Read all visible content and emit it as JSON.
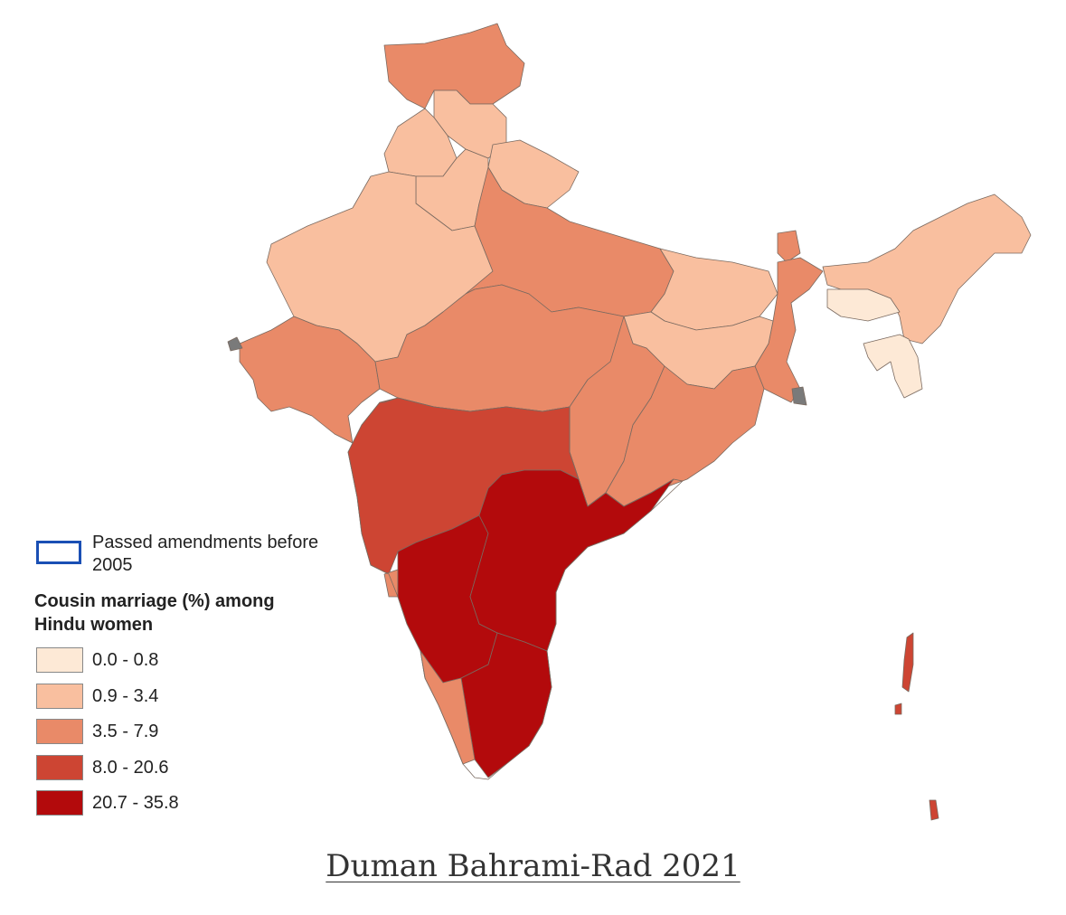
{
  "colors": {
    "c0": "#fde9d6",
    "c1": "#f9bf9f",
    "c2": "#e98a68",
    "c3": "#cd4533",
    "c4": "#b30a0c",
    "amendment_outline": "#1a4fb4",
    "no_data": "#7a7a7a"
  },
  "legend": {
    "amendment_label": "Passed amendments before 2005",
    "title": "Cousin marriage (%) among Hindu women",
    "classes": [
      {
        "label": "0.0 - 0.8",
        "color": "#fde9d6"
      },
      {
        "label": "0.9 - 3.4",
        "color": "#f9bf9f"
      },
      {
        "label": "3.5 - 7.9",
        "color": "#e98a68"
      },
      {
        "label": "8.0 - 20.6",
        "color": "#cd4533"
      },
      {
        "label": "20.7 - 35.8",
        "color": "#b30a0c"
      }
    ]
  },
  "map": {
    "regions": [
      {
        "name": "jammu-kashmir",
        "class": 2
      },
      {
        "name": "himachal-pradesh",
        "class": 1
      },
      {
        "name": "punjab",
        "class": 1
      },
      {
        "name": "uttarakhand",
        "class": 1
      },
      {
        "name": "haryana",
        "class": 1
      },
      {
        "name": "rajasthan",
        "class": 1
      },
      {
        "name": "uttar-pradesh",
        "class": 2
      },
      {
        "name": "bihar",
        "class": 1
      },
      {
        "name": "sikkim",
        "class": 2
      },
      {
        "name": "west-bengal",
        "class": 2
      },
      {
        "name": "gujarat",
        "class": 2
      },
      {
        "name": "madhya-pradesh",
        "class": 2
      },
      {
        "name": "jharkhand",
        "class": 1
      },
      {
        "name": "chhattisgarh",
        "class": 2
      },
      {
        "name": "odisha",
        "class": 2
      },
      {
        "name": "maharashtra",
        "class": 3
      },
      {
        "name": "goa",
        "class": 2
      },
      {
        "name": "karnataka",
        "class": 4
      },
      {
        "name": "telangana-andhra",
        "class": 4
      },
      {
        "name": "tamil-nadu",
        "class": 4
      },
      {
        "name": "kerala",
        "class": 2
      },
      {
        "name": "northeast",
        "class": 1
      },
      {
        "name": "meghalaya",
        "class": 0
      },
      {
        "name": "tripura-mizoram",
        "class": 0
      },
      {
        "name": "andaman-nicobar",
        "class": 3
      }
    ]
  },
  "caption": "Duman Bahrami-Rad 2021"
}
